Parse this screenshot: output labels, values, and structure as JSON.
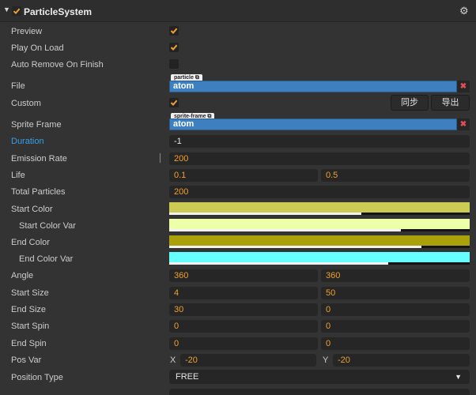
{
  "header": {
    "title": "ParticleSystem",
    "enabled": true
  },
  "preview": {
    "label": "Preview",
    "checked": true
  },
  "play_on_load": {
    "label": "Play On Load",
    "checked": true
  },
  "auto_remove": {
    "label": "Auto Remove On Finish",
    "checked": false
  },
  "file": {
    "label": "File",
    "tag": "particle",
    "value": "atom"
  },
  "custom": {
    "label": "Custom",
    "checked": true,
    "sync_label": "同步",
    "export_label": "导出"
  },
  "sprite_frame": {
    "label": "Sprite Frame",
    "tag": "sprite-frame",
    "value": "atom"
  },
  "duration": {
    "label": "Duration",
    "value": "-1"
  },
  "emission_rate": {
    "label": "Emission Rate",
    "value": "200"
  },
  "life": {
    "label": "Life",
    "value": "0.1",
    "var": "0.5"
  },
  "total_particles": {
    "label": "Total Particles",
    "value": "200"
  },
  "start_color": {
    "label": "Start Color",
    "color": "#cccc55",
    "alpha": 0.64
  },
  "start_color_var": {
    "label": "Start Color Var",
    "color": "#eeffaa",
    "alpha": 0.77
  },
  "end_color": {
    "label": "End Color",
    "color": "#a9a00a",
    "alpha": 0.84
  },
  "end_color_var": {
    "label": "End Color Var",
    "color": "#66ffff",
    "alpha": 0.73
  },
  "angle": {
    "label": "Angle",
    "value": "360",
    "var": "360"
  },
  "start_size": {
    "label": "Start Size",
    "value": "4",
    "var": "50"
  },
  "end_size": {
    "label": "End Size",
    "value": "30",
    "var": "0"
  },
  "start_spin": {
    "label": "Start Spin",
    "value": "0",
    "var": "0"
  },
  "end_spin": {
    "label": "End Spin",
    "value": "0",
    "var": "0"
  },
  "pos_var": {
    "label": "Pos Var",
    "x_label": "X",
    "x": "-20",
    "y_label": "Y",
    "y": "-20"
  },
  "position_type": {
    "label": "Position Type",
    "value": "FREE"
  },
  "colors": {
    "accent": "#f0a030",
    "asset_blue": "#3d7fbf",
    "check_orange": "#f0a030"
  }
}
